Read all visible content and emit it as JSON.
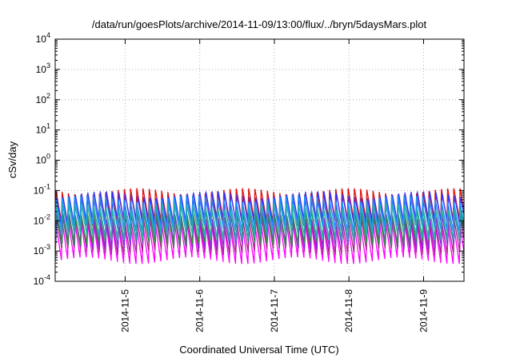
{
  "chart_data": {
    "type": "line",
    "title": "/data/run/goesPlots/archive/2014-11-09/13:00/flux/../bryn/5daysMars.plot",
    "xlabel": "Coordinated Universal Time (UTC)",
    "ylabel": "cSv/day",
    "y_scale": "log",
    "ylim": [
      0.0001,
      10000
    ],
    "xlim": [
      "2014-11-04 01:30",
      "2014-11-09 13:00"
    ],
    "y_ticks": [
      {
        "value": 0.0001,
        "mantissa": "10",
        "exp": "-4"
      },
      {
        "value": 0.001,
        "mantissa": "10",
        "exp": "-3"
      },
      {
        "value": 0.01,
        "mantissa": "10",
        "exp": "-2"
      },
      {
        "value": 0.1,
        "mantissa": "10",
        "exp": "-1"
      },
      {
        "value": 1,
        "mantissa": "10",
        "exp": "0"
      },
      {
        "value": 10,
        "mantissa": "10",
        "exp": "1"
      },
      {
        "value": 100,
        "mantissa": "10",
        "exp": "2"
      },
      {
        "value": 1000,
        "mantissa": "10",
        "exp": "3"
      },
      {
        "value": 10000,
        "mantissa": "10",
        "exp": "4"
      }
    ],
    "x_ticks": [
      "2014-11-5",
      "2014-11-6",
      "2014-11-7",
      "2014-11-8",
      "2014-11-9"
    ],
    "grid": true,
    "legend": "none",
    "sawtooth_period_hours": 2,
    "series": [
      {
        "color": "#ff00ff",
        "peak": 0.009,
        "trough": 0.0005
      },
      {
        "color": "#aa1f8a",
        "peak": 0.012,
        "trough": 0.001
      },
      {
        "color": "#8a2be2",
        "peak": 0.015,
        "trough": 0.0015
      },
      {
        "color": "#dd1111",
        "peak": 0.095,
        "trough": 0.009
      },
      {
        "color": "#2f8f3f",
        "peak": 0.02,
        "trough": 0.002
      },
      {
        "color": "#3333ff",
        "peak": 0.075,
        "trough": 0.007
      },
      {
        "color": "#1e90ff",
        "peak": 0.055,
        "trough": 0.006
      },
      {
        "color": "#20b2aa",
        "peak": 0.03,
        "trough": 0.003
      }
    ]
  }
}
